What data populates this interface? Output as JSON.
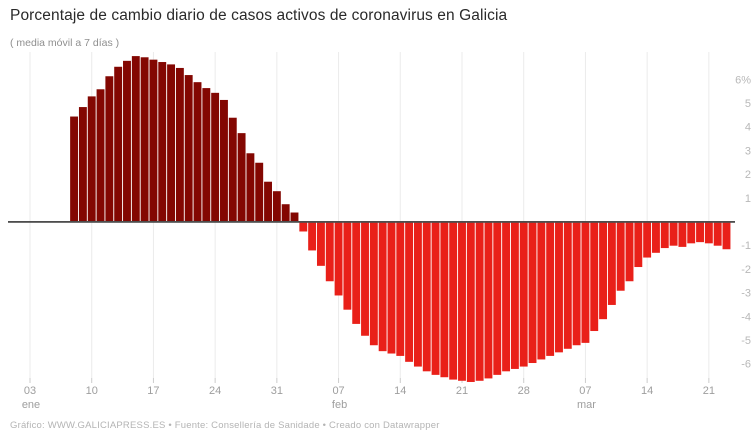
{
  "header": {
    "title": "Porcentaje de cambio diario de casos activos de coronavirus en Galicia",
    "subtitle": "( media móvil a 7 días )"
  },
  "footer": {
    "credit": "Gráfico: WWW.GALICIAPRESS.ES • Fuente: Consellería de Sanidade • Creado con Datawrapper"
  },
  "colors": {
    "positive_bar": "#830702",
    "negative_bar": "#e92019",
    "axis_line": "#4d4d4d",
    "gridline": "#ebebeb",
    "tick_mark": "#cccccc",
    "x_tick_label": "#9e9e9e",
    "y_tick_label": "#b8b8b8"
  },
  "chart_data": {
    "type": "bar",
    "title": "Porcentaje de cambio diario de casos activos de coronavirus en Galicia",
    "subtitle": "( media móvil a 7 días )",
    "unit": "%",
    "ylim": [
      -7,
      7
    ],
    "legend": "none",
    "grid": "vertical-weekly-only",
    "y_ticks": [
      {
        "label": "6%",
        "value": 6
      },
      {
        "label": "5",
        "value": 5
      },
      {
        "label": "4",
        "value": 4
      },
      {
        "label": "3",
        "value": 3
      },
      {
        "label": "2",
        "value": 2
      },
      {
        "label": "1",
        "value": 1
      },
      {
        "label": "-1",
        "value": -1
      },
      {
        "label": "-2",
        "value": -2
      },
      {
        "label": "-3",
        "value": -3
      },
      {
        "label": "-4",
        "value": -4
      },
      {
        "label": "-5",
        "value": -5
      },
      {
        "label": "-6",
        "value": -6
      }
    ],
    "x_ticks": [
      {
        "label": "03",
        "month": "ene",
        "day_index": 0
      },
      {
        "label": "10",
        "day_index": 7
      },
      {
        "label": "17",
        "day_index": 14
      },
      {
        "label": "24",
        "day_index": 21
      },
      {
        "label": "31",
        "day_index": 28
      },
      {
        "label": "07",
        "month": "feb",
        "day_index": 35
      },
      {
        "label": "14",
        "day_index": 42
      },
      {
        "label": "21",
        "day_index": 49
      },
      {
        "label": "28",
        "day_index": 56
      },
      {
        "label": "07",
        "month": "mar",
        "day_index": 63
      },
      {
        "label": "14",
        "day_index": 70
      },
      {
        "label": "21",
        "day_index": 77
      }
    ],
    "dates": [
      "08 ene",
      "09 ene",
      "10 ene",
      "11 ene",
      "12 ene",
      "13 ene",
      "14 ene",
      "15 ene",
      "16 ene",
      "17 ene",
      "18 ene",
      "19 ene",
      "20 ene",
      "21 ene",
      "22 ene",
      "23 ene",
      "24 ene",
      "25 ene",
      "26 ene",
      "27 ene",
      "28 ene",
      "29 ene",
      "30 ene",
      "31 ene",
      "01 feb",
      "02 feb",
      "03 feb",
      "04 feb",
      "05 feb",
      "06 feb",
      "07 feb",
      "08 feb",
      "09 feb",
      "10 feb",
      "11 feb",
      "12 feb",
      "13 feb",
      "14 feb",
      "15 feb",
      "16 feb",
      "17 feb",
      "18 feb",
      "19 feb",
      "20 feb",
      "21 feb",
      "22 feb",
      "23 feb",
      "24 feb",
      "25 feb",
      "26 feb",
      "27 feb",
      "28 feb",
      "01 mar",
      "02 mar",
      "03 mar",
      "04 mar",
      "05 mar",
      "06 mar",
      "07 mar",
      "08 mar",
      "09 mar",
      "10 mar",
      "11 mar",
      "12 mar",
      "13 mar",
      "14 mar",
      "15 mar",
      "16 mar",
      "17 mar",
      "18 mar",
      "19 mar",
      "20 mar",
      "21 mar",
      "22 mar",
      "23 mar"
    ],
    "values": [
      4.45,
      4.85,
      5.3,
      5.6,
      6.15,
      6.55,
      6.8,
      7.0,
      6.95,
      6.85,
      6.75,
      6.65,
      6.5,
      6.2,
      5.9,
      5.65,
      5.45,
      5.15,
      4.4,
      3.75,
      2.9,
      2.5,
      1.7,
      1.3,
      0.75,
      0.4,
      -0.4,
      -1.2,
      -1.85,
      -2.5,
      -3.1,
      -3.7,
      -4.3,
      -4.8,
      -5.2,
      -5.45,
      -5.55,
      -5.65,
      -5.9,
      -6.1,
      -6.3,
      -6.45,
      -6.55,
      -6.65,
      -6.7,
      -6.75,
      -6.7,
      -6.6,
      -6.45,
      -6.3,
      -6.2,
      -6.1,
      -5.95,
      -5.8,
      -5.65,
      -5.5,
      -5.35,
      -5.2,
      -5.1,
      -4.6,
      -4.1,
      -3.5,
      -2.9,
      -2.5,
      -1.9,
      -1.5,
      -1.3,
      -1.1,
      -1.0,
      -1.05,
      -0.9,
      -0.85,
      -0.9,
      -1.0,
      -1.15
    ]
  }
}
